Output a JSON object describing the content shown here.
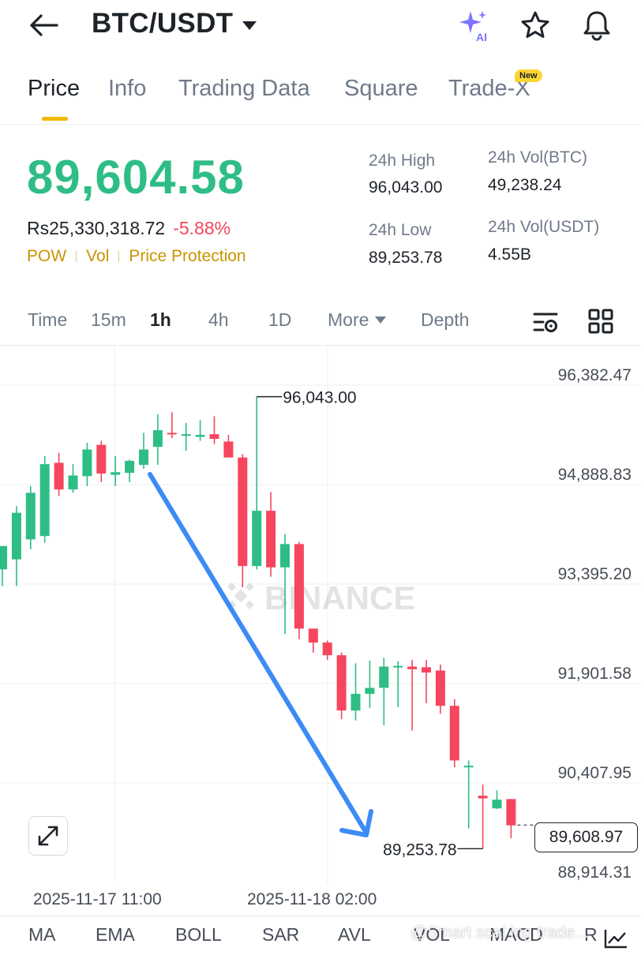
{
  "header": {
    "pair": "BTC/USDT",
    "icons": [
      "back-arrow-icon",
      "ai-sparkle-icon",
      "star-icon",
      "bell-icon"
    ],
    "ai_label": "AI"
  },
  "tabs": [
    {
      "label": "Price",
      "active": true
    },
    {
      "label": "Info"
    },
    {
      "label": "Trading Data"
    },
    {
      "label": "Square"
    },
    {
      "label": "Trade-X",
      "badge": "New"
    }
  ],
  "price": {
    "last": "89,604.58",
    "fiat": "Rs25,330,318.72",
    "change": "-5.88%",
    "tags": [
      "POW",
      "Vol",
      "Price Protection"
    ]
  },
  "stats": {
    "high_label": "24h High",
    "high": "96,043.00",
    "low_label": "24h Low",
    "low": "89,253.78",
    "vol_btc_label": "24h Vol(BTC)",
    "vol_btc": "49,238.24",
    "vol_usdt_label": "24h Vol(USDT)",
    "vol_usdt": "4.55B"
  },
  "intervals": {
    "items": [
      "Time",
      "15m",
      "1h",
      "4h",
      "1D",
      "More",
      "Depth"
    ],
    "active": "1h"
  },
  "chart_data": {
    "type": "candlestick",
    "y_ticks": [
      "96,382.47",
      "94,888.83",
      "93,395.20",
      "91,901.58",
      "90,407.95",
      "88,914.31"
    ],
    "x_ticks": [
      "2025-11-17 11:00",
      "2025-11-18 02:00"
    ],
    "high_marker": "96,043.00",
    "low_marker": "89,253.78",
    "last_price": "89,608.97",
    "watermark": "BINANCE",
    "colors": {
      "up": "#2ebd85",
      "down": "#f6465d",
      "annotation": "#3d8bf5"
    },
    "candles": [
      {
        "o": 93450,
        "h": 93800,
        "c": 93800,
        "l": 93200
      },
      {
        "o": 93600,
        "h": 94400,
        "c": 94300,
        "l": 93200
      },
      {
        "o": 93900,
        "h": 94700,
        "c": 94600,
        "l": 93750
      },
      {
        "o": 93950,
        "h": 95150,
        "c": 95030,
        "l": 93850
      },
      {
        "o": 95050,
        "h": 95200,
        "c": 94650,
        "l": 94550
      },
      {
        "o": 94650,
        "h": 95030,
        "c": 94860,
        "l": 94600
      },
      {
        "o": 94850,
        "h": 95350,
        "c": 95250,
        "l": 94700
      },
      {
        "o": 95320,
        "h": 95380,
        "c": 94890,
        "l": 94760
      },
      {
        "o": 94870,
        "h": 95150,
        "c": 94910,
        "l": 94700
      },
      {
        "o": 94900,
        "h": 95100,
        "c": 95080,
        "l": 94760
      },
      {
        "o": 95020,
        "h": 95500,
        "c": 95250,
        "l": 94960
      },
      {
        "o": 95290,
        "h": 95780,
        "c": 95540,
        "l": 95020
      },
      {
        "o": 95500,
        "h": 95810,
        "c": 95480,
        "l": 95420
      },
      {
        "o": 95460,
        "h": 95650,
        "c": 95480,
        "l": 95230
      },
      {
        "o": 95440,
        "h": 95690,
        "c": 95470,
        "l": 95380
      },
      {
        "o": 95480,
        "h": 95750,
        "c": 95410,
        "l": 95330
      },
      {
        "o": 95370,
        "h": 95470,
        "c": 95130,
        "l": 95130
      },
      {
        "o": 95130,
        "h": 95180,
        "c": 93500,
        "l": 93180
      },
      {
        "o": 93500,
        "h": 96043,
        "c": 94330,
        "l": 93450
      },
      {
        "o": 94330,
        "h": 94610,
        "c": 93480,
        "l": 93340
      },
      {
        "o": 93480,
        "h": 93980,
        "c": 93830,
        "l": 92480
      },
      {
        "o": 93830,
        "h": 93860,
        "c": 92560,
        "l": 92400
      },
      {
        "o": 92560,
        "h": 92560,
        "c": 92350,
        "l": 92200
      },
      {
        "o": 92350,
        "h": 92380,
        "c": 92160,
        "l": 92090
      },
      {
        "o": 92160,
        "h": 92200,
        "c": 91330,
        "l": 91200
      },
      {
        "o": 91330,
        "h": 92040,
        "c": 91580,
        "l": 91180
      },
      {
        "o": 91580,
        "h": 92080,
        "c": 91670,
        "l": 91370
      },
      {
        "o": 91670,
        "h": 92120,
        "c": 91990,
        "l": 91110
      },
      {
        "o": 91990,
        "h": 92070,
        "c": 92000,
        "l": 91380
      },
      {
        "o": 91990,
        "h": 92090,
        "c": 91950,
        "l": 91030
      },
      {
        "o": 91980,
        "h": 92090,
        "c": 91900,
        "l": 91440
      },
      {
        "o": 91930,
        "h": 92020,
        "c": 91400,
        "l": 91280
      },
      {
        "o": 91400,
        "h": 91500,
        "c": 90580,
        "l": 90480
      },
      {
        "o": 90500,
        "h": 90580,
        "c": 90500,
        "l": 89560
      },
      {
        "o": 90050,
        "h": 90220,
        "c": 90010,
        "l": 89253.78
      },
      {
        "o": 89860,
        "h": 90130,
        "c": 89990,
        "l": 89850
      },
      {
        "o": 90000,
        "h": 90000,
        "c": 89604.58,
        "l": 89410
      }
    ]
  },
  "indicators": [
    "MA",
    "EMA",
    "BOLL",
    "SAR",
    "AVL",
    "VOL",
    "MACD",
    "R"
  ],
  "watermark_text": "@Smart scal ing trade..."
}
